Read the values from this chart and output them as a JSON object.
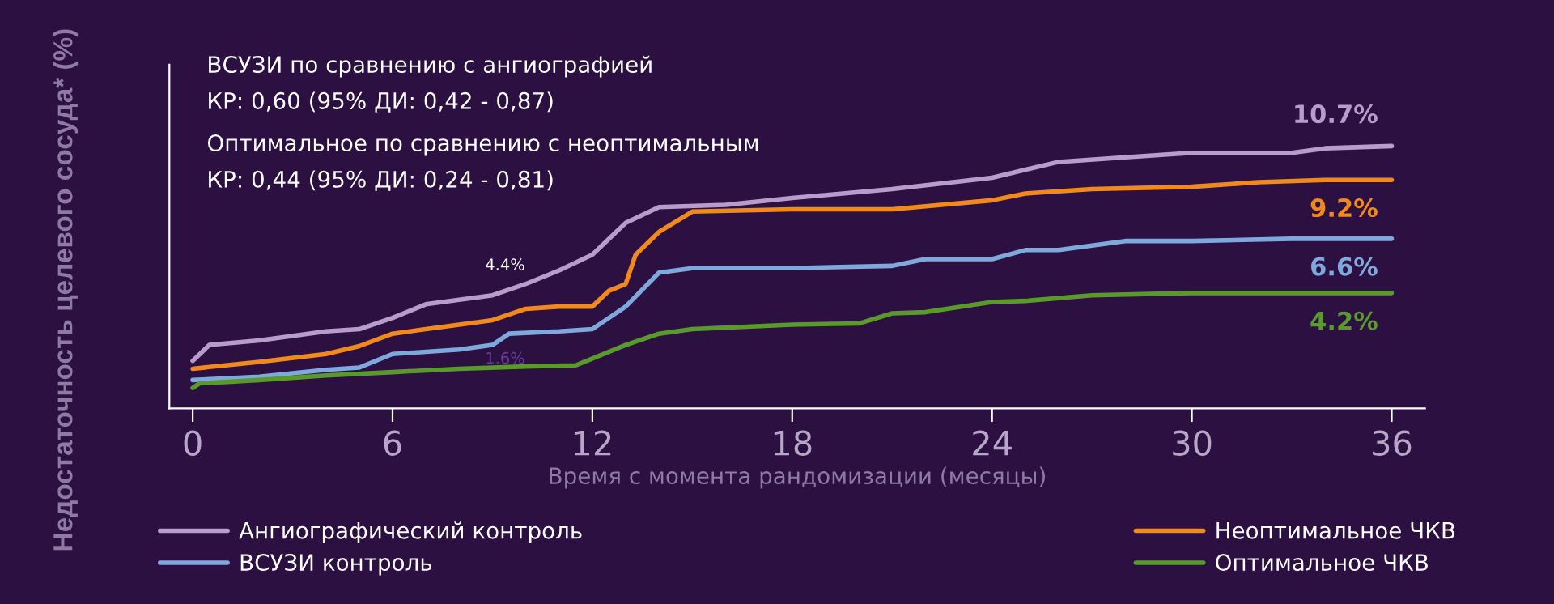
{
  "chart_data": {
    "type": "line",
    "xlabel": "Время с момента рандомизации (месяцы)",
    "ylabel": "Недостаточность целевого сосуда* (%)",
    "xlim": [
      -0.7,
      37
    ],
    "xticks": [
      0,
      6,
      12,
      18,
      24,
      30,
      36
    ],
    "ylim": [
      -0.9,
      14.3
    ],
    "tick_labels": "x",
    "grid": false,
    "legend": "bottom",
    "marker": "none",
    "line_style": "solid",
    "series": [
      {
        "name": "Ангиографический контроль",
        "color": "#b89ccb",
        "x": [
          0,
          0.5,
          2,
          4,
          5,
          6,
          7,
          8,
          9,
          10,
          11,
          12,
          13,
          14,
          16,
          18,
          21,
          24,
          26,
          28,
          30,
          33,
          34,
          36
        ],
        "values": [
          1.2,
          1.9,
          2.1,
          2.5,
          2.6,
          3.1,
          3.7,
          3.9,
          4.1,
          4.6,
          5.2,
          5.9,
          7.3,
          8.0,
          8.1,
          8.4,
          8.8,
          9.3,
          10.0,
          10.2,
          10.4,
          10.4,
          10.6,
          10.7
        ],
        "value_labels": [
          null,
          null,
          null,
          null,
          null,
          null,
          null,
          null,
          null,
          null,
          null,
          null,
          null,
          null,
          null,
          null,
          null,
          null,
          null,
          null,
          null,
          null,
          null,
          "10.7%"
        ]
      },
      {
        "name": "ВСУЗИ контроль",
        "color": "#7fa8dc",
        "x": [
          0,
          2,
          4,
          5,
          6,
          8,
          9,
          9.5,
          11,
          12,
          13,
          14,
          15,
          18,
          21,
          22,
          24,
          25,
          26,
          28,
          30,
          33,
          34,
          36
        ],
        "values": [
          0.35,
          0.5,
          0.8,
          0.9,
          1.5,
          1.7,
          1.9,
          2.4,
          2.5,
          2.6,
          3.6,
          5.1,
          5.3,
          5.3,
          5.4,
          5.7,
          5.7,
          6.1,
          6.1,
          6.5,
          6.5,
          6.6,
          6.6,
          6.6
        ],
        "value_labels": [
          null,
          null,
          null,
          null,
          null,
          null,
          null,
          null,
          null,
          null,
          null,
          null,
          null,
          null,
          null,
          null,
          null,
          null,
          null,
          null,
          null,
          null,
          null,
          "6.6%"
        ]
      },
      {
        "name": "Неоптимальное ЧКВ",
        "color": "#f08a1c",
        "x": [
          0,
          2,
          4,
          5,
          6,
          7,
          8,
          9,
          10,
          11,
          12,
          12.5,
          13,
          13.3,
          14,
          15,
          18,
          21,
          24,
          25,
          27,
          30,
          32,
          34,
          36
        ],
        "values": [
          0.85,
          1.15,
          1.5,
          1.85,
          2.4,
          2.6,
          2.8,
          3.0,
          3.5,
          3.6,
          3.6,
          4.3,
          4.6,
          5.9,
          6.9,
          7.8,
          7.9,
          7.9,
          8.3,
          8.6,
          8.8,
          8.9,
          9.1,
          9.2,
          9.2
        ],
        "value_labels": [
          null,
          null,
          null,
          null,
          null,
          null,
          null,
          null,
          null,
          null,
          null,
          null,
          null,
          null,
          null,
          null,
          null,
          null,
          null,
          null,
          null,
          null,
          null,
          null,
          "9.2%"
        ]
      },
      {
        "name": "Оптимальное ЧКВ",
        "color": "#5a9a2a",
        "x": [
          0,
          0.2,
          2,
          4,
          6,
          8,
          10,
          11.5,
          12,
          13,
          14,
          15,
          18,
          20,
          21,
          22,
          24,
          25,
          27,
          30,
          36
        ],
        "values": [
          0,
          0.2,
          0.35,
          0.55,
          0.7,
          0.85,
          0.95,
          1.0,
          1.3,
          1.9,
          2.4,
          2.6,
          2.8,
          2.85,
          3.3,
          3.35,
          3.8,
          3.85,
          4.1,
          4.2,
          4.2
        ],
        "value_labels": [
          null,
          null,
          null,
          null,
          null,
          null,
          null,
          null,
          null,
          null,
          null,
          null,
          null,
          null,
          null,
          null,
          null,
          null,
          null,
          null,
          "4.2%"
        ]
      }
    ],
    "annotations": [
      "4.4%",
      "1.6%",
      "ВСУЗИ по сравнению с ангиографией",
      "КР: 0,60 (95% ДИ: 0,42 - 0,87)",
      "Оптимальное по сравнению с неоптимальным",
      "КР: 0,44 (95% ДИ: 0,24 - 0,81)"
    ]
  }
}
